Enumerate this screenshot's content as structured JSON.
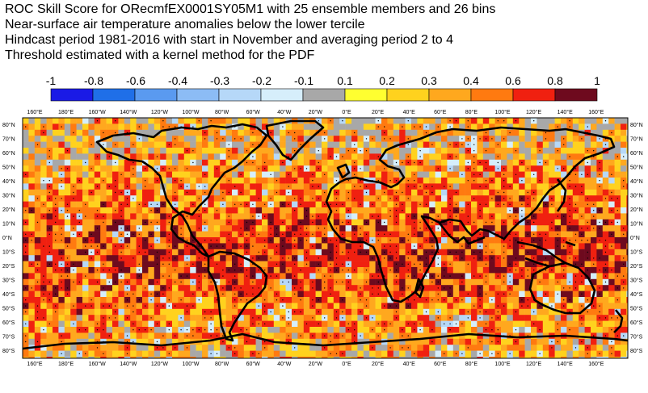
{
  "title_lines": [
    "ROC Skill Score for ORecmfEX0001SY05M1 with 25 ensemble members and 26 bins",
    "Near-surface air temperature anomalies below the lower tercile",
    "Hindcast period 1981-2016 with start in November and averaging period  2 to  4",
    "Threshold estimated with a kernel method for the PDF"
  ],
  "colorbar": {
    "labels": [
      "-1",
      "-0.8",
      "-0.6",
      "-0.4",
      "-0.3",
      "-0.2",
      "-0.1",
      "0.1",
      "0.2",
      "0.3",
      "0.4",
      "0.6",
      "0.8",
      "1"
    ],
    "colors": [
      "#1a1ae6",
      "#1f6fe8",
      "#5a9af0",
      "#8cbcf5",
      "#b6d8f8",
      "#d6eefb",
      "#a8a8a8",
      "#ffff30",
      "#ffd21e",
      "#ffa81e",
      "#ff7a10",
      "#f02010",
      "#6e0a1e"
    ]
  },
  "map": {
    "lon_ticks": [
      "160°E",
      "180°E",
      "160°W",
      "140°W",
      "120°W",
      "100°W",
      "80°W",
      "60°W",
      "40°W",
      "20°W",
      "0°E",
      "20°E",
      "40°E",
      "60°E",
      "80°E",
      "100°E",
      "120°E",
      "140°E",
      "160°E"
    ],
    "lat_ticks": [
      "80°N",
      "70°N",
      "60°N",
      "50°N",
      "40°N",
      "30°N",
      "20°N",
      "10°N",
      "0°N",
      "10°S",
      "20°S",
      "30°S",
      "40°S",
      "50°S",
      "60°S",
      "70°S",
      "80°S"
    ]
  }
}
